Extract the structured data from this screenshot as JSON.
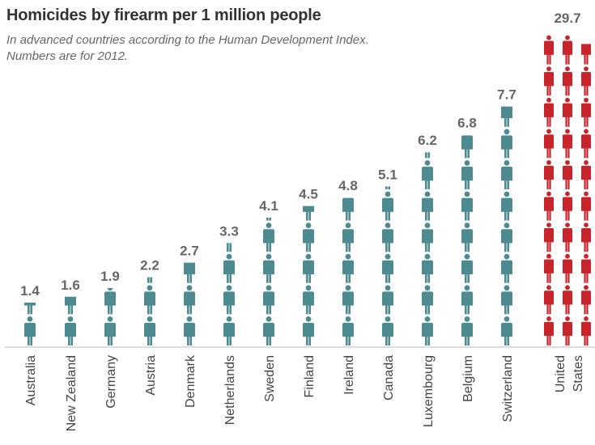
{
  "chart_data": {
    "type": "bar",
    "title": "Homicides by firearm per 1 million people",
    "subtitle_lines": [
      "In advanced countries according to the Human Development Index.",
      "Numbers are for 2012."
    ],
    "categories": [
      "Australia",
      "New Zealand",
      "Germany",
      "Austria",
      "Denmark",
      "Netherlands",
      "Sweden",
      "Finland",
      "Ireland",
      "Canada",
      "Luxembourg",
      "Belgium",
      "Switzerland",
      "United States"
    ],
    "category_lines": [
      [
        "Australia"
      ],
      [
        "New Zealand"
      ],
      [
        "Germany"
      ],
      [
        "Austria"
      ],
      [
        "Denmark"
      ],
      [
        "Netherlands"
      ],
      [
        "Sweden"
      ],
      [
        "Finland"
      ],
      [
        "Ireland"
      ],
      [
        "Canada"
      ],
      [
        "Luxembourg"
      ],
      [
        "Belgium"
      ],
      [
        "Switzerland"
      ],
      [
        "United",
        "States"
      ]
    ],
    "values": [
      1.4,
      1.6,
      1.9,
      2.2,
      2.7,
      3.3,
      4.1,
      4.5,
      4.8,
      5.1,
      6.2,
      6.8,
      7.7,
      29.7
    ],
    "value_labels": [
      "1.4",
      "1.6",
      "1.9",
      "2.2",
      "2.7",
      "3.3",
      "4.1",
      "4.5",
      "4.8",
      "5.1",
      "6.2",
      "6.8",
      "7.7",
      "29.7"
    ],
    "unit_per_icon": 1,
    "icons_per_column_us": 3,
    "colors": {
      "default": "#4e8b91",
      "highlight": "#c8242b"
    }
  }
}
